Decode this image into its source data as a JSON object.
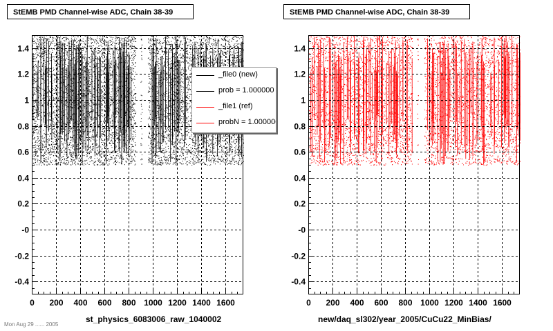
{
  "colors": {
    "series_new": "#000000",
    "series_ref": "#ff0000",
    "background": "#ffffff"
  },
  "footer_text": "Mon Aug 29 ...... 2005",
  "legend": [
    {
      "label": "_file0 (new)",
      "color": "#000000"
    },
    {
      "label": "prob = 1.000000",
      "color": "#000000"
    },
    {
      "label": "_file1 (ref)",
      "color": "#ff0000"
    },
    {
      "label": "probN = 1.000000",
      "color": "#ff0000"
    }
  ],
  "chart_data": [
    {
      "type": "scatter",
      "title": "StEMB PMD Channel-wise ADC, Chain 38-39",
      "xlabel": "st_physics_6083006_raw_1040002",
      "ylabel": "",
      "xlim": [
        0,
        1750
      ],
      "ylim": [
        -0.5,
        1.5
      ],
      "xticks": [
        "0",
        "200",
        "400",
        "600",
        "800",
        "1000",
        "1200",
        "1400",
        "1600"
      ],
      "yticks": [
        "-0.4",
        "-0.2",
        "-0",
        "0.2",
        "0.4",
        "0.6",
        "0.8",
        "1",
        "1.2",
        "1.4"
      ],
      "grid": true,
      "legend_position": "upper-right",
      "series": [
        {
          "name": "_file0 (new)",
          "color": "#000000",
          "x_range": [
            0,
            1750
          ],
          "y_range": [
            0.5,
            1.5
          ],
          "empty_x_ranges": [
            [
              860,
              900
            ],
            [
              910,
              960
            ]
          ]
        }
      ]
    },
    {
      "type": "scatter",
      "title": "StEMB PMD Channel-wise ADC, Chain 38-39",
      "xlabel": "new/daq_sl302/year_2005/CuCu22_MinBias/",
      "ylabel": "",
      "xlim": [
        0,
        1750
      ],
      "ylim": [
        -0.5,
        1.5
      ],
      "xticks": [
        "0",
        "200",
        "400",
        "600",
        "800",
        "1000",
        "1200",
        "1400",
        "1600"
      ],
      "yticks": [
        "-0.4",
        "-0.2",
        "-0",
        "0.2",
        "0.4",
        "0.6",
        "0.8",
        "1",
        "1.2",
        "1.4"
      ],
      "grid": true,
      "series": [
        {
          "name": "_file1 (ref)",
          "color": "#ff0000",
          "x_range": [
            0,
            1750
          ],
          "y_range": [
            0.5,
            1.5
          ],
          "empty_x_ranges": [
            [
              860,
              900
            ],
            [
              910,
              960
            ]
          ]
        }
      ]
    }
  ]
}
